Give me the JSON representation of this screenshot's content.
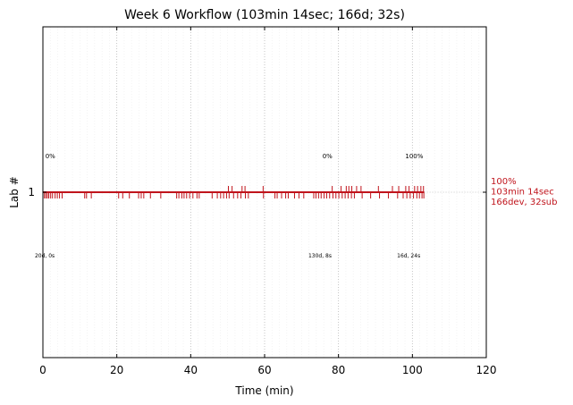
{
  "chart_data": {
    "type": "event-timeline",
    "title": "Week 6 Workflow (103min 14sec; 166d; 32s)",
    "xlabel": "Time (min)",
    "ylabel": "Lab #",
    "xlim": [
      0,
      120
    ],
    "x_ticks": [
      "0",
      "20",
      "40",
      "60",
      "80",
      "100",
      "120"
    ],
    "x_tick_values": [
      0,
      20,
      40,
      60,
      80,
      100,
      120
    ],
    "minor_grid_step": 2,
    "y_ticks": [
      "1"
    ],
    "line_color": "#c0141c",
    "lanes": [
      {
        "lab": 1,
        "start": 0,
        "end": 103.2,
        "submission_events": [
          0.4,
          0.8,
          1.2,
          1.6,
          2.1,
          2.6,
          3.3,
          3.9,
          4.5,
          5.2,
          11.3,
          11.8,
          13.1,
          20.5,
          21.6,
          23.4,
          25.9,
          26.6,
          27.3,
          29.1,
          31.9,
          36.2,
          36.8,
          37.6,
          38.2,
          38.9,
          39.7,
          40.6,
          41.7,
          42.3,
          45.8,
          47.2,
          48.1,
          48.9,
          49.7,
          50.4,
          51.6,
          52.7,
          53.6,
          54.8,
          55.6,
          59.7,
          62.8,
          63.4,
          64.6,
          65.7,
          66.4,
          68.1,
          69.3,
          70.6,
          73.3,
          73.9,
          74.6,
          75.3,
          76.1,
          76.8,
          77.6,
          78.5,
          79.3,
          80.1,
          81.0,
          81.8,
          82.6,
          83.5,
          84.3,
          86.4,
          88.7,
          91.1,
          93.5,
          96.0,
          97.5,
          98.5,
          99.4,
          100.3,
          101.2,
          101.9,
          102.6,
          103.1
        ],
        "device_events": [
          50.2,
          51.2,
          53.9,
          54.7,
          59.6,
          78.3,
          80.7,
          82.1,
          82.8,
          83.6,
          84.9,
          86.1,
          90.8,
          94.6,
          96.3,
          98.2,
          99.1,
          100.6,
          101.4,
          102.3,
          103.0
        ],
        "segment_labels_above": [
          {
            "x": 2.0,
            "text": "0%"
          },
          {
            "x": 77.0,
            "text": "0%"
          },
          {
            "x": 100.5,
            "text": "100%"
          }
        ],
        "segment_labels_below": [
          {
            "x": 0.5,
            "text": "20d, 0s"
          },
          {
            "x": 75.0,
            "text": "130d, 8s"
          },
          {
            "x": 99.0,
            "text": "16d, 24s"
          }
        ],
        "end_label": [
          "100%",
          "103min 14sec",
          "166dev, 32sub"
        ]
      }
    ]
  }
}
